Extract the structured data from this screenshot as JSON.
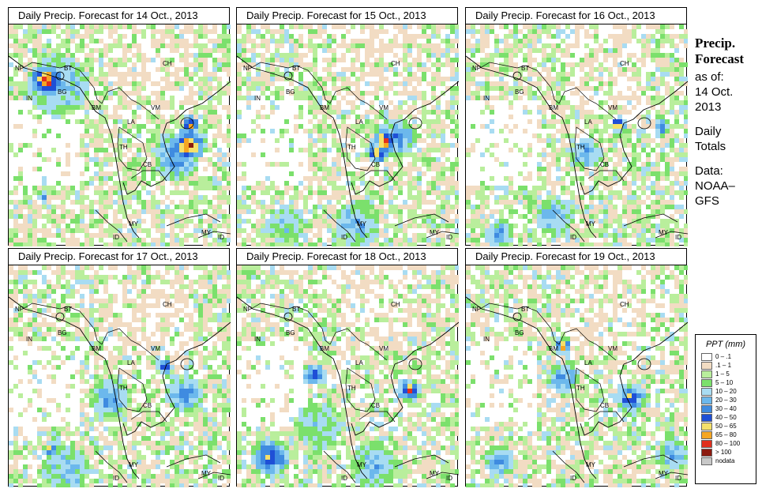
{
  "panels": [
    {
      "title": "Daily Precip. Forecast for  14 Oct., 2013"
    },
    {
      "title": "Daily Precip. Forecast for  15 Oct., 2013"
    },
    {
      "title": "Daily Precip. Forecast for  16 Oct., 2013"
    },
    {
      "title": "Daily Precip. Forecast for  17 Oct., 2013"
    },
    {
      "title": "Daily Precip. Forecast for  18 Oct., 2013"
    },
    {
      "title": "Daily Precip. Forecast for  19 Oct., 2013"
    }
  ],
  "country_labels": {
    "NP": "NP",
    "BT": "BT",
    "IN": "IN",
    "BG": "BG",
    "BM": "BM",
    "CH": "CH",
    "VM": "VM",
    "LA": "LA",
    "TH": "TH",
    "CB": "CB",
    "MY": "MY",
    "ID": "ID"
  },
  "side": {
    "heading1": "Precip.",
    "heading2": "Forecast",
    "asof1": "as of:",
    "asof2": "14 Oct.",
    "asof3": "2013",
    "daily1": "Daily",
    "daily2": "Totals",
    "data1": "Data:",
    "data2": "NOAA–",
    "data3": "GFS"
  },
  "legend": {
    "title": "PPT (mm)",
    "items": [
      {
        "label": "0 – .1",
        "color": "#ffffff"
      },
      {
        "label": ".1 – 1",
        "color": "#f2dcc3"
      },
      {
        "label": "1 – 5",
        "color": "#b9ee9c"
      },
      {
        "label": "5 – 10",
        "color": "#7be06c"
      },
      {
        "label": "10 – 20",
        "color": "#a8dcf2"
      },
      {
        "label": "20 – 30",
        "color": "#6cb8ec"
      },
      {
        "label": "30 – 40",
        "color": "#3f8be0"
      },
      {
        "label": "40 – 50",
        "color": "#1f4fd6"
      },
      {
        "label": "50 – 65",
        "color": "#f5e06a"
      },
      {
        "label": "65 – 80",
        "color": "#f5a623"
      },
      {
        "label": "80 – 100",
        "color": "#e0301e"
      },
      {
        "label": "> 100",
        "color": "#8c1a0f"
      },
      {
        "label": "nodata",
        "color": "#c8c8c8"
      }
    ]
  }
}
